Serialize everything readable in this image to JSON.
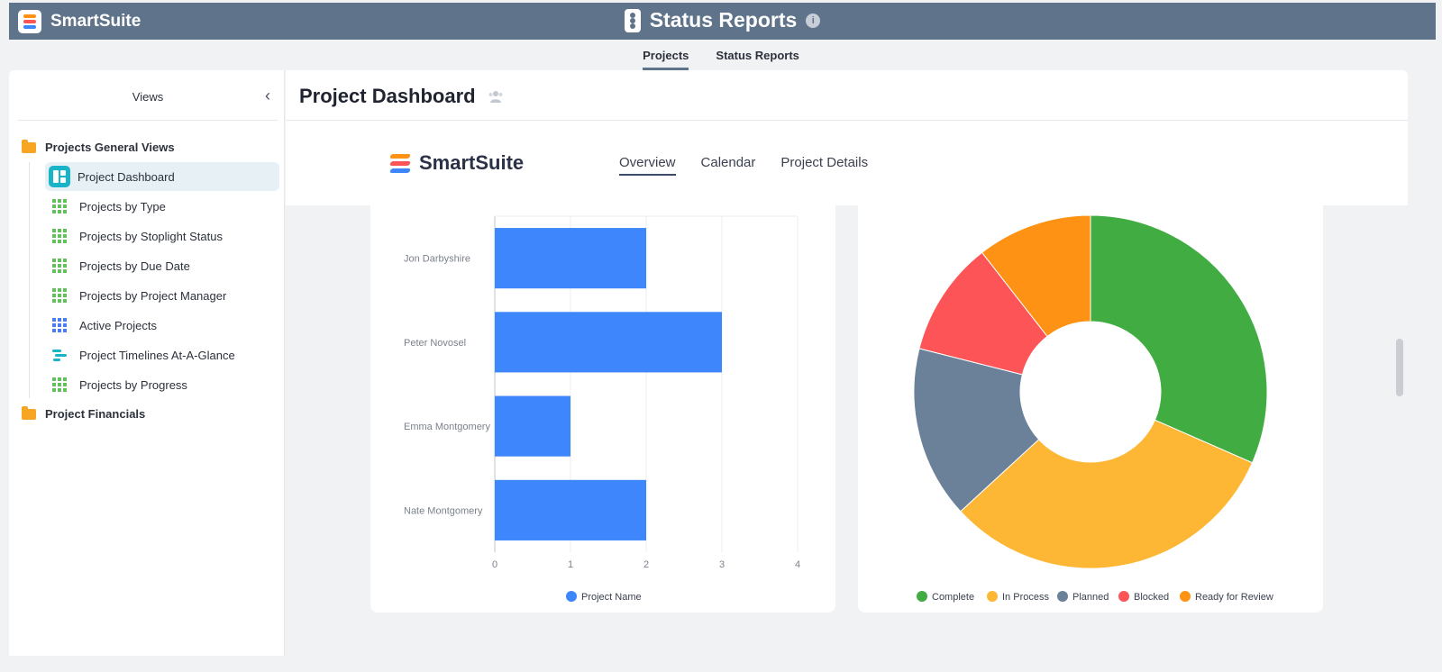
{
  "header": {
    "brand": "SmartSuite",
    "title": "Status Reports",
    "info": "i"
  },
  "app_tabs": [
    {
      "label": "Projects",
      "active": true
    },
    {
      "label": "Status Reports",
      "active": false
    }
  ],
  "sidebar": {
    "title": "Views",
    "folders": [
      {
        "label": "Projects General Views"
      },
      {
        "label": "Project Financials"
      }
    ],
    "items": [
      {
        "label": "Project Dashboard",
        "icon": "dashboard-icon",
        "active": true
      },
      {
        "label": "Projects by Type",
        "icon": "grid-view-icon"
      },
      {
        "label": "Projects by Stoplight Status",
        "icon": "grid-view-icon"
      },
      {
        "label": "Projects by Due Date",
        "icon": "grid-view-icon"
      },
      {
        "label": "Projects by Project Manager",
        "icon": "grid-view-icon"
      },
      {
        "label": "Active Projects",
        "icon": "grid-view-icon"
      },
      {
        "label": "Project Timelines At-A-Glance",
        "icon": "timeline-icon"
      },
      {
        "label": "Projects by Progress",
        "icon": "grid-view-icon"
      }
    ]
  },
  "main": {
    "title": "Project Dashboard",
    "dashboard_brand": "SmartSuite",
    "tabs": [
      {
        "label": "Overview",
        "active": true
      },
      {
        "label": "Calendar",
        "active": false
      },
      {
        "label": "Project Details",
        "active": false
      }
    ]
  },
  "colors": {
    "topbar": "#5f738b",
    "bar": "#3d86fb",
    "complete": "#41ac41",
    "in_process": "#fdb735",
    "planned": "#6b8199",
    "blocked": "#fd5557",
    "ready_for_review": "#fd9214"
  },
  "chart_data": [
    {
      "type": "bar",
      "orientation": "horizontal",
      "categories": [
        "Jon Darbyshire",
        "Peter Novosel",
        "Emma Montgomery",
        "Nate Montgomery"
      ],
      "series": [
        {
          "name": "Project Name",
          "values": [
            2,
            3,
            1,
            2
          ]
        }
      ],
      "xlim": [
        0,
        4
      ],
      "xticks": [
        0,
        1,
        2,
        3,
        4
      ],
      "grid": true,
      "legend": "bottom"
    },
    {
      "type": "pie",
      "donut": true,
      "labels": [
        "Complete",
        "In Process",
        "Planned",
        "Blocked",
        "Ready for Review"
      ],
      "values": [
        3,
        3,
        1.5,
        1,
        1
      ],
      "legend": "bottom"
    }
  ]
}
